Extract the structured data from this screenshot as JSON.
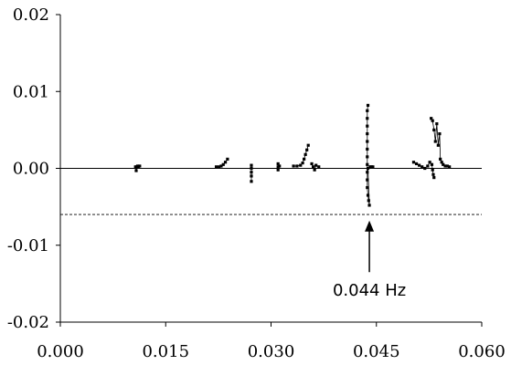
{
  "chart_data": {
    "type": "scatter",
    "title": "",
    "xlabel": "",
    "ylabel": "",
    "xlim": [
      0.0,
      0.06
    ],
    "ylim": [
      -0.02,
      0.02
    ],
    "x_ticks": [
      "0.000",
      "0.015",
      "0.030",
      "0.045",
      "0.060"
    ],
    "y_ticks": [
      "0.02",
      "0.01",
      "0.00",
      "-0.01",
      "-0.02"
    ],
    "grid": false,
    "reference_lines": [
      {
        "y": 0.0,
        "style": "solid"
      },
      {
        "y": -0.006,
        "style": "dashed"
      }
    ],
    "annotation": {
      "text": "0.044 Hz",
      "x": 0.044,
      "arrow_tip_y": -0.0068,
      "arrow_tail_y": -0.0135
    },
    "series": [
      {
        "points": [
          [
            0.0107,
            0.0002
          ],
          [
            0.0108,
            -0.0003
          ],
          [
            0.0109,
            0.0002
          ],
          [
            0.011,
            0.0003
          ],
          [
            0.0111,
            0.0002
          ],
          [
            0.0113,
            0.0003
          ]
        ]
      },
      {
        "points": [
          [
            0.0222,
            0.0002
          ],
          [
            0.0226,
            0.0002
          ],
          [
            0.0229,
            0.0003
          ],
          [
            0.0232,
            0.0005
          ],
          [
            0.0235,
            0.0008
          ],
          [
            0.0238,
            0.0012
          ]
        ]
      },
      {
        "points": [
          [
            0.0272,
            0.0004
          ],
          [
            0.0272,
            0.0
          ],
          [
            0.0272,
            -0.0005
          ],
          [
            0.0272,
            -0.001
          ],
          [
            0.0272,
            -0.0017
          ]
        ]
      },
      {
        "points": [
          [
            0.031,
            0.0006
          ],
          [
            0.031,
            0.0002
          ],
          [
            0.031,
            -0.0002
          ],
          [
            0.0312,
            0.0003
          ]
        ]
      },
      {
        "points": [
          [
            0.0332,
            0.0003
          ],
          [
            0.0337,
            0.0003
          ],
          [
            0.0342,
            0.0004
          ],
          [
            0.0345,
            0.0007
          ],
          [
            0.0347,
            0.0012
          ],
          [
            0.0349,
            0.0018
          ],
          [
            0.0351,
            0.0024
          ],
          [
            0.0353,
            0.003
          ]
        ]
      },
      {
        "points": [
          [
            0.0358,
            0.0006
          ],
          [
            0.036,
            0.0002
          ],
          [
            0.0362,
            -0.0002
          ],
          [
            0.0364,
            0.0004
          ],
          [
            0.0368,
            0.0002
          ]
        ]
      },
      {
        "points": [
          [
            0.0438,
            0.0082
          ],
          [
            0.0437,
            0.0075
          ],
          [
            0.0437,
            0.0065
          ],
          [
            0.0437,
            0.0055
          ],
          [
            0.0437,
            0.0045
          ],
          [
            0.0437,
            0.0035
          ],
          [
            0.0437,
            0.0025
          ],
          [
            0.0437,
            0.0015
          ],
          [
            0.0437,
            0.0005
          ],
          [
            0.0437,
            -0.0005
          ],
          [
            0.0437,
            -0.0015
          ],
          [
            0.0437,
            -0.0025
          ],
          [
            0.0438,
            -0.0035
          ],
          [
            0.0439,
            -0.0042
          ],
          [
            0.044,
            -0.0048
          ],
          [
            0.0438,
            0.0
          ],
          [
            0.0441,
            0.0002
          ],
          [
            0.0443,
            0.0002
          ],
          [
            0.0445,
            0.0002
          ]
        ]
      },
      {
        "points": [
          [
            0.0503,
            0.0008
          ],
          [
            0.0507,
            0.0006
          ],
          [
            0.0511,
            0.0004
          ],
          [
            0.0515,
            0.0002
          ],
          [
            0.0519,
            0.0
          ],
          [
            0.0523,
            0.0003
          ],
          [
            0.0526,
            0.0008
          ]
        ]
      },
      {
        "points": [
          [
            0.0528,
            0.0065
          ],
          [
            0.053,
            0.0062
          ],
          [
            0.0532,
            0.005
          ],
          [
            0.0534,
            0.0035
          ],
          [
            0.0536,
            0.0058
          ],
          [
            0.0538,
            0.003
          ],
          [
            0.054,
            0.0045
          ],
          [
            0.0541,
            0.0012
          ],
          [
            0.0543,
            0.0008
          ],
          [
            0.0545,
            0.0005
          ],
          [
            0.0548,
            0.0003
          ],
          [
            0.0551,
            0.0003
          ],
          [
            0.0554,
            0.0002
          ]
        ]
      },
      {
        "points": [
          [
            0.0529,
            0.0005
          ],
          [
            0.053,
            -0.0002
          ],
          [
            0.0531,
            -0.0008
          ],
          [
            0.0532,
            -0.0012
          ]
        ]
      }
    ]
  }
}
